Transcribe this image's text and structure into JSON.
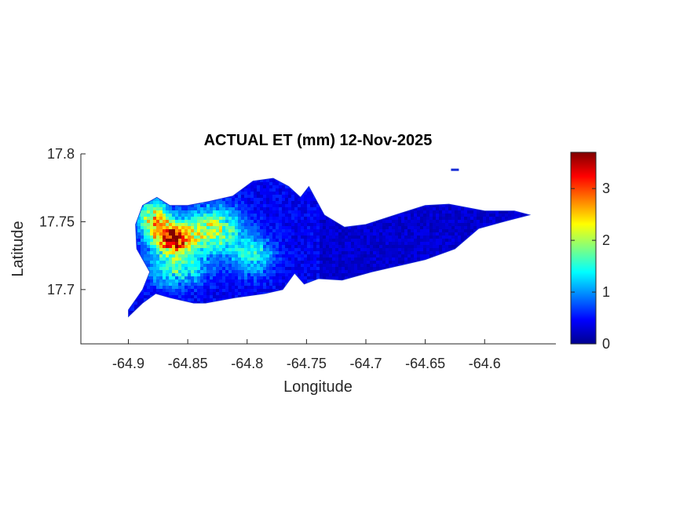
{
  "chart_data": {
    "type": "heatmap",
    "title": "ACTUAL ET (mm) 12-Nov-2025",
    "xlabel": "Longitude",
    "ylabel": "Latitude",
    "xlim": [
      -64.94,
      -64.54
    ],
    "ylim": [
      17.66,
      17.8
    ],
    "x_ticks": [
      -64.9,
      -64.85,
      -64.8,
      -64.75,
      -64.7,
      -64.65,
      -64.6
    ],
    "x_tick_labels": [
      "-64.9",
      "-64.85",
      "-64.8",
      "-64.75",
      "-64.7",
      "-64.65",
      "-64.6"
    ],
    "y_ticks": [
      17.7,
      17.75,
      17.8
    ],
    "y_tick_labels": [
      "17.7",
      "17.75",
      "17.8"
    ],
    "colormap": "jet",
    "colorbar": {
      "min": 0,
      "max": 3.7,
      "ticks": [
        0,
        1,
        2,
        3
      ],
      "tick_labels": [
        "0",
        "1",
        "2",
        "3"
      ]
    },
    "region_outline": [
      [
        -64.9,
        17.68
      ],
      [
        -64.888,
        17.69
      ],
      [
        -64.877,
        17.697
      ],
      [
        -64.865,
        17.694
      ],
      [
        -64.845,
        17.69
      ],
      [
        -64.835,
        17.69
      ],
      [
        -64.81,
        17.694
      ],
      [
        -64.785,
        17.697
      ],
      [
        -64.77,
        17.7
      ],
      [
        -64.76,
        17.712
      ],
      [
        -64.752,
        17.704
      ],
      [
        -64.74,
        17.708
      ],
      [
        -64.72,
        17.707
      ],
      [
        -64.695,
        17.713
      ],
      [
        -64.67,
        17.718
      ],
      [
        -64.65,
        17.722
      ],
      [
        -64.625,
        17.73
      ],
      [
        -64.605,
        17.745
      ],
      [
        -64.58,
        17.751
      ],
      [
        -64.562,
        17.755
      ],
      [
        -64.575,
        17.758
      ],
      [
        -64.6,
        17.758
      ],
      [
        -64.63,
        17.763
      ],
      [
        -64.65,
        17.762
      ],
      [
        -64.672,
        17.756
      ],
      [
        -64.7,
        17.748
      ],
      [
        -64.718,
        17.746
      ],
      [
        -64.735,
        17.755
      ],
      [
        -64.748,
        17.776
      ],
      [
        -64.755,
        17.768
      ],
      [
        -64.765,
        17.776
      ],
      [
        -64.778,
        17.782
      ],
      [
        -64.795,
        17.78
      ],
      [
        -64.812,
        17.769
      ],
      [
        -64.832,
        17.765
      ],
      [
        -64.85,
        17.762
      ],
      [
        -64.865,
        17.762
      ],
      [
        -64.876,
        17.768
      ],
      [
        -64.888,
        17.762
      ],
      [
        -64.894,
        17.748
      ],
      [
        -64.893,
        17.73
      ],
      [
        -64.882,
        17.713
      ],
      [
        -64.888,
        17.7
      ],
      [
        -64.9,
        17.685
      ]
    ],
    "et_hotspots": [
      {
        "lon": -64.862,
        "lat": 17.737,
        "peak": 3.3,
        "spread_lon": 0.012,
        "spread_lat": 0.008
      },
      {
        "lon": -64.878,
        "lat": 17.752,
        "peak": 2.2,
        "spread_lon": 0.01,
        "spread_lat": 0.009
      },
      {
        "lon": -64.828,
        "lat": 17.744,
        "peak": 1.9,
        "spread_lon": 0.016,
        "spread_lat": 0.012
      },
      {
        "lon": -64.86,
        "lat": 17.715,
        "peak": 1.3,
        "spread_lon": 0.018,
        "spread_lat": 0.009
      },
      {
        "lon": -64.795,
        "lat": 17.725,
        "peak": 1.2,
        "spread_lon": 0.012,
        "spread_lat": 0.01
      }
    ],
    "et_background": 0.25
  }
}
